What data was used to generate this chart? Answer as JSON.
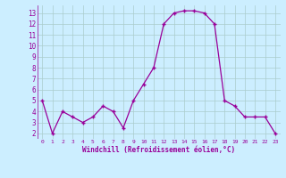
{
  "x": [
    0,
    1,
    2,
    3,
    4,
    5,
    6,
    7,
    8,
    9,
    10,
    11,
    12,
    13,
    14,
    15,
    16,
    17,
    18,
    19,
    20,
    21,
    22,
    23
  ],
  "y": [
    5.0,
    2.0,
    4.0,
    3.5,
    3.0,
    3.5,
    4.5,
    4.0,
    2.5,
    5.0,
    6.5,
    8.0,
    12.0,
    13.0,
    13.2,
    13.2,
    13.0,
    12.0,
    5.0,
    4.5,
    3.5,
    3.5,
    3.5,
    2.0
  ],
  "line_color": "#990099",
  "marker_color": "#990099",
  "bg_color": "#cceeff",
  "grid_color": "#aacccc",
  "xlabel": "Windchill (Refroidissement éolien,°C)",
  "tick_color": "#990099",
  "xlim": [
    -0.5,
    23.5
  ],
  "ylim": [
    1.5,
    13.7
  ],
  "yticks": [
    2,
    3,
    4,
    5,
    6,
    7,
    8,
    9,
    10,
    11,
    12,
    13
  ],
  "xticks": [
    0,
    1,
    2,
    3,
    4,
    5,
    6,
    7,
    8,
    9,
    10,
    11,
    12,
    13,
    14,
    15,
    16,
    17,
    18,
    19,
    20,
    21,
    22,
    23
  ]
}
